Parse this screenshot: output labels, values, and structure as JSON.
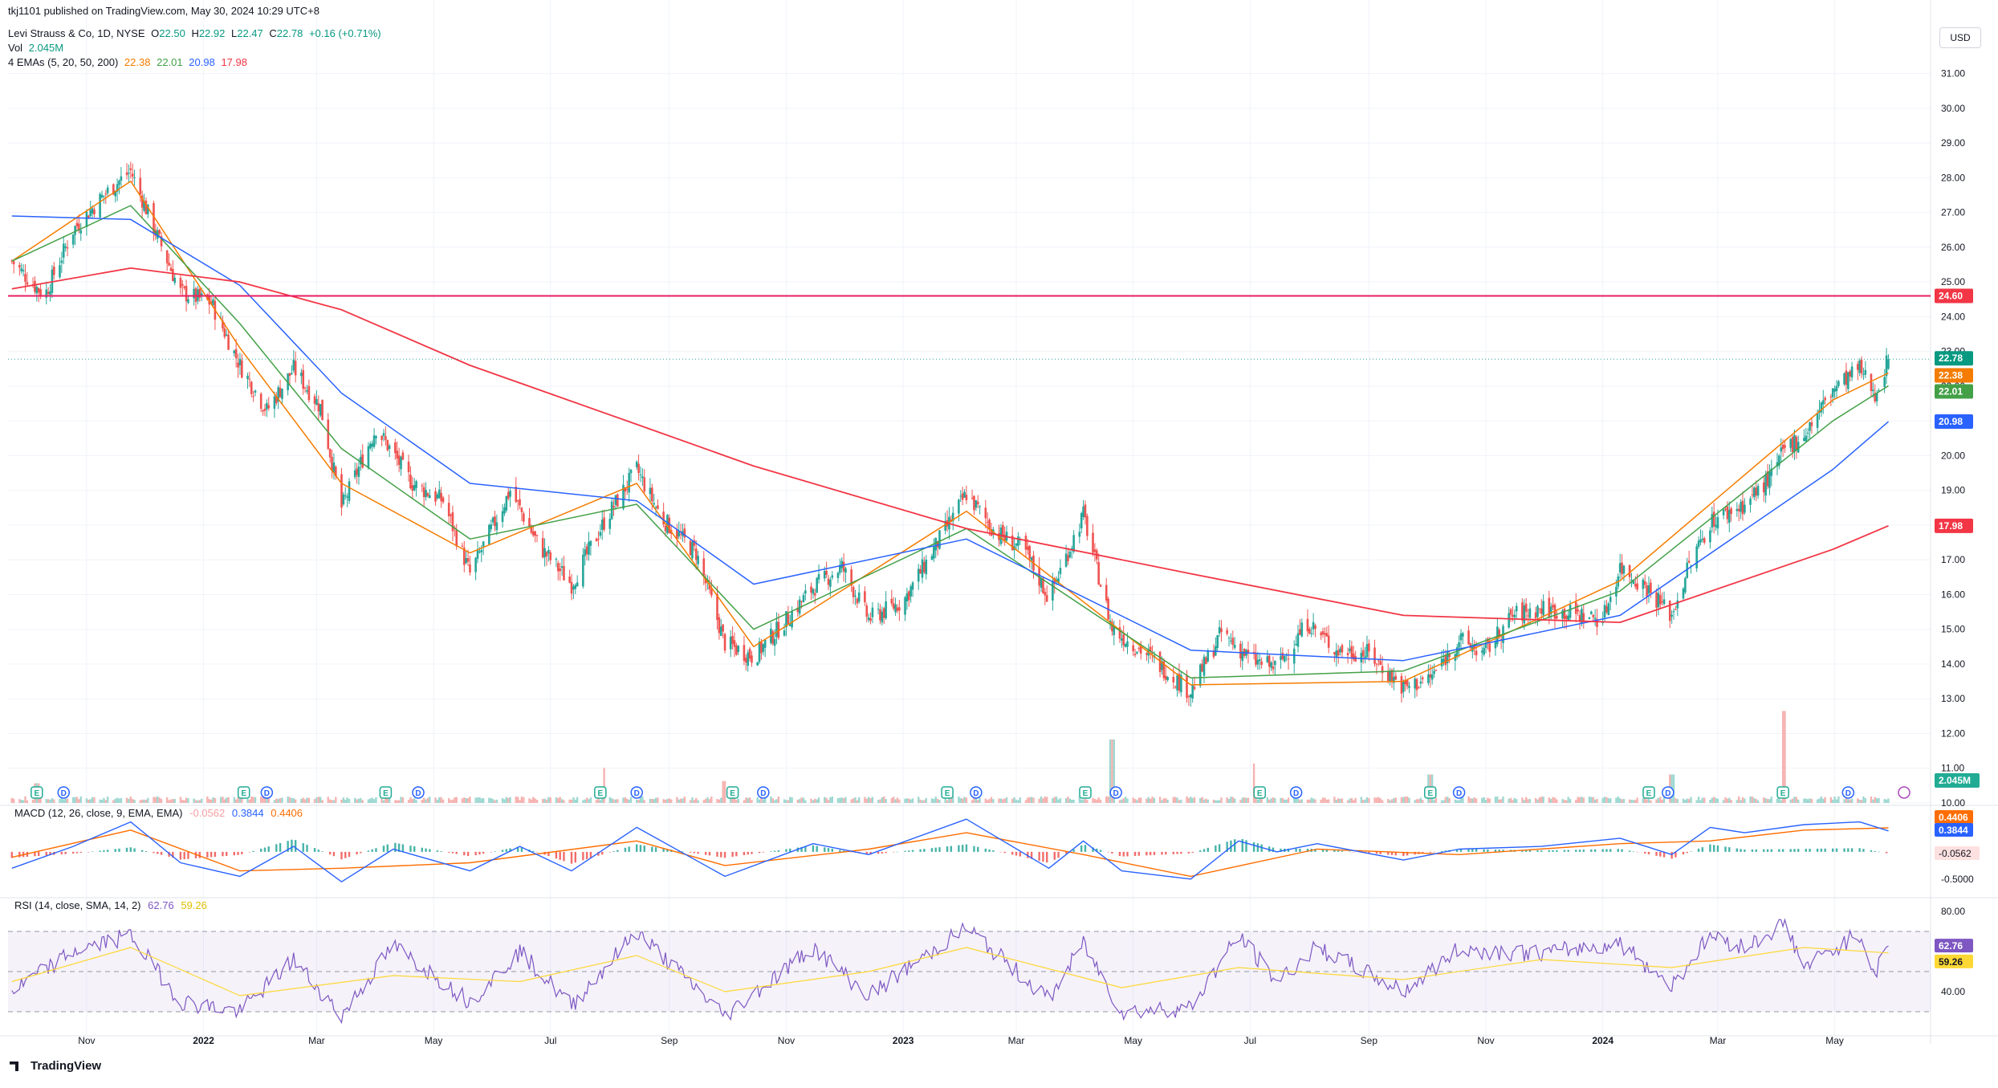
{
  "header": {
    "published": "tkj1101 published on TradingView.com, May 30, 2024 10:29 UTC+8",
    "symbol": "Levi Strauss & Co, 1D, NYSE",
    "ohlc": {
      "o_label": "O",
      "o": "22.50",
      "h_label": "H",
      "h": "22.92",
      "l_label": "L",
      "l": "22.47",
      "c_label": "C",
      "c": "22.78",
      "chg": "+0.16 (+0.71%)"
    },
    "vol_label": "Vol",
    "vol_value": "2.045M",
    "ema_label": "4 EMAs (5, 20, 50, 200)",
    "ema_values": [
      "22.38",
      "22.01",
      "20.98",
      "17.98"
    ]
  },
  "currency_button": "USD",
  "macd_label": "MACD (12, 26, close, 9, EMA, EMA)",
  "macd_values": [
    "-0.0562",
    "0.3844",
    "0.4406"
  ],
  "rsi_label": "RSI (14, close, SMA, 14, 2)",
  "rsi_values": [
    "62.76",
    "59.26"
  ],
  "footer": {
    "logo_text": "TradingView"
  },
  "colors": {
    "up": "#26a69a",
    "down": "#ef5350",
    "ema5": "#f57c00",
    "ema20": "#43a047",
    "ema50": "#2962ff",
    "ema200": "#f23645",
    "macd": "#2962ff",
    "signal": "#ff6d00",
    "rsi": "#7e57c2",
    "rsi_ma": "#fdd835",
    "hline": "#e91e63"
  },
  "chart_data": [
    {
      "type": "candlestick",
      "name": "price",
      "ylim": [
        10.0,
        31.5
      ],
      "y_ticks": [
        "31.00",
        "30.00",
        "29.00",
        "28.00",
        "27.00",
        "26.00",
        "25.00",
        "24.00",
        "23.00",
        "22.00",
        "21.00",
        "20.00",
        "19.00",
        "18.00",
        "17.00",
        "16.00",
        "15.00",
        "14.00",
        "13.00",
        "12.00",
        "11.00",
        "10.00"
      ],
      "x_ticks": [
        "Nov",
        "2022",
        "Mar",
        "May",
        "Jul",
        "Sep",
        "Nov",
        "2023",
        "Mar",
        "May",
        "Jul",
        "Sep",
        "Nov",
        "2024",
        "Mar",
        "May"
      ],
      "x_range": [
        "2021-09-21",
        "2024-06-20"
      ],
      "close_path": [
        [
          "2021-09-23",
          25.6
        ],
        [
          "2021-10-10",
          24.6
        ],
        [
          "2021-10-25",
          26.5
        ],
        [
          "2021-11-10",
          27.5
        ],
        [
          "2021-11-24",
          28.2
        ],
        [
          "2021-12-08",
          26.3
        ],
        [
          "2021-12-20",
          24.7
        ],
        [
          "2022-01-05",
          24.4
        ],
        [
          "2022-01-20",
          22.6
        ],
        [
          "2022-02-03",
          21.3
        ],
        [
          "2022-02-17",
          22.5
        ],
        [
          "2022-03-03",
          21.4
        ],
        [
          "2022-03-14",
          18.5
        ],
        [
          "2022-04-01",
          20.8
        ],
        [
          "2022-04-20",
          19.2
        ],
        [
          "2022-05-06",
          18.7
        ],
        [
          "2022-05-20",
          16.6
        ],
        [
          "2022-06-10",
          19.0
        ],
        [
          "2022-06-25",
          17.4
        ],
        [
          "2022-07-12",
          16.3
        ],
        [
          "2022-07-30",
          18.2
        ],
        [
          "2022-08-15",
          19.6
        ],
        [
          "2022-08-28",
          18.2
        ],
        [
          "2022-09-15",
          17.2
        ],
        [
          "2022-09-30",
          14.6
        ],
        [
          "2022-10-15",
          14.2
        ],
        [
          "2022-10-31",
          15.2
        ],
        [
          "2022-11-15",
          16.2
        ],
        [
          "2022-11-30",
          16.8
        ],
        [
          "2022-12-14",
          15.3
        ],
        [
          "2023-01-01",
          15.8
        ],
        [
          "2023-01-18",
          17.4
        ],
        [
          "2023-02-03",
          18.9
        ],
        [
          "2023-02-18",
          17.8
        ],
        [
          "2023-03-05",
          17.3
        ],
        [
          "2023-03-18",
          15.9
        ],
        [
          "2023-04-05",
          18.3
        ],
        [
          "2023-04-20",
          15.0
        ],
        [
          "2023-05-10",
          14.2
        ],
        [
          "2023-05-31",
          13.2
        ],
        [
          "2023-06-16",
          14.9
        ],
        [
          "2023-07-02",
          14.1
        ],
        [
          "2023-07-15",
          13.9
        ],
        [
          "2023-07-31",
          15.2
        ],
        [
          "2023-08-15",
          14.4
        ],
        [
          "2023-09-01",
          14.3
        ],
        [
          "2023-09-19",
          13.3
        ],
        [
          "2023-10-03",
          13.6
        ],
        [
          "2023-10-18",
          14.7
        ],
        [
          "2023-10-31",
          14.3
        ],
        [
          "2023-11-15",
          15.4
        ],
        [
          "2023-11-30",
          15.6
        ],
        [
          "2024-01-01",
          15.3
        ],
        [
          "2024-01-10",
          16.8
        ],
        [
          "2024-01-24",
          16.2
        ],
        [
          "2024-02-06",
          15.4
        ],
        [
          "2024-02-14",
          16.7
        ],
        [
          "2024-02-26",
          18.1
        ],
        [
          "2024-03-15",
          18.6
        ],
        [
          "2024-03-29",
          19.4
        ],
        [
          "2024-04-05",
          20.2
        ],
        [
          "2024-04-15",
          20.6
        ],
        [
          "2024-04-30",
          21.9
        ],
        [
          "2024-05-14",
          22.5
        ],
        [
          "2024-05-22",
          21.8
        ],
        [
          "2024-05-29",
          22.78
        ]
      ],
      "ema": [
        {
          "label": "EMA 5",
          "last": 22.38,
          "path": [
            [
              "2021-09-23",
              25.6
            ],
            [
              "2021-11-24",
              27.9
            ],
            [
              "2022-01-20",
              23.1
            ],
            [
              "2022-03-14",
              19.2
            ],
            [
              "2022-05-20",
              17.2
            ],
            [
              "2022-08-15",
              19.2
            ],
            [
              "2022-10-15",
              14.5
            ],
            [
              "2023-02-03",
              18.4
            ],
            [
              "2023-05-31",
              13.4
            ],
            [
              "2023-09-19",
              13.5
            ],
            [
              "2024-01-10",
              16.4
            ],
            [
              "2024-04-30",
              21.6
            ],
            [
              "2024-05-29",
              22.38
            ]
          ]
        },
        {
          "label": "EMA 20",
          "last": 22.01,
          "path": [
            [
              "2021-09-23",
              25.6
            ],
            [
              "2021-11-24",
              27.2
            ],
            [
              "2022-01-20",
              23.8
            ],
            [
              "2022-03-14",
              20.2
            ],
            [
              "2022-05-20",
              17.6
            ],
            [
              "2022-08-15",
              18.6
            ],
            [
              "2022-10-15",
              15.0
            ],
            [
              "2023-02-03",
              17.9
            ],
            [
              "2023-05-31",
              13.6
            ],
            [
              "2023-09-19",
              13.8
            ],
            [
              "2024-01-10",
              16.1
            ],
            [
              "2024-04-30",
              21.0
            ],
            [
              "2024-05-29",
              22.01
            ]
          ]
        },
        {
          "label": "EMA 50",
          "last": 20.98,
          "path": [
            [
              "2021-09-23",
              26.9
            ],
            [
              "2021-11-24",
              26.8
            ],
            [
              "2022-01-20",
              24.9
            ],
            [
              "2022-03-14",
              21.8
            ],
            [
              "2022-05-20",
              19.2
            ],
            [
              "2022-08-15",
              18.7
            ],
            [
              "2022-10-15",
              16.3
            ],
            [
              "2023-02-03",
              17.6
            ],
            [
              "2023-05-31",
              14.4
            ],
            [
              "2023-09-19",
              14.1
            ],
            [
              "2024-01-10",
              15.4
            ],
            [
              "2024-04-30",
              19.6
            ],
            [
              "2024-05-29",
              20.98
            ]
          ]
        },
        {
          "label": "EMA 200",
          "last": 17.98,
          "path": [
            [
              "2021-09-23",
              24.8
            ],
            [
              "2021-11-24",
              25.4
            ],
            [
              "2022-01-20",
              25.0
            ],
            [
              "2022-03-14",
              24.2
            ],
            [
              "2022-05-20",
              22.6
            ],
            [
              "2022-08-15",
              20.9
            ],
            [
              "2022-10-15",
              19.7
            ],
            [
              "2023-02-03",
              17.9
            ],
            [
              "2023-05-31",
              16.6
            ],
            [
              "2023-09-19",
              15.4
            ],
            [
              "2024-01-10",
              15.2
            ],
            [
              "2024-04-30",
              17.3
            ],
            [
              "2024-05-29",
              17.98
            ]
          ]
        }
      ],
      "horizontal_line": 24.6,
      "price_labels": [
        "24.60",
        "22.78",
        "22.38",
        "22.01",
        "20.98",
        "17.98"
      ]
    },
    {
      "type": "bar",
      "name": "volume",
      "last_label": "2.045M",
      "spikes": [
        [
          "2021-10-06",
          0.9
        ],
        [
          "2022-02-03",
          0.55
        ],
        [
          "2022-07-30",
          1.6
        ],
        [
          "2022-09-30",
          1.0
        ],
        [
          "2023-04-20",
          2.9
        ],
        [
          "2023-07-02",
          1.8
        ],
        [
          "2023-10-03",
          1.3
        ],
        [
          "2024-02-06",
          1.3
        ],
        [
          "2024-04-05",
          4.2
        ]
      ],
      "event_markers": [
        [
          "2021-10-06",
          "E"
        ],
        [
          "2021-10-20",
          "D"
        ],
        [
          "2022-01-22",
          "E"
        ],
        [
          "2022-02-03",
          "D"
        ],
        [
          "2022-04-06",
          "E"
        ],
        [
          "2022-04-23",
          "D"
        ],
        [
          "2022-07-27",
          "E"
        ],
        [
          "2022-08-15",
          "D"
        ],
        [
          "2022-10-04",
          "E"
        ],
        [
          "2022-10-20",
          "D"
        ],
        [
          "2023-01-24",
          "E"
        ],
        [
          "2023-02-08",
          "D"
        ],
        [
          "2023-04-06",
          "E"
        ],
        [
          "2023-04-22",
          "D"
        ],
        [
          "2023-07-06",
          "E"
        ],
        [
          "2023-07-25",
          "D"
        ],
        [
          "2023-10-03",
          "E"
        ],
        [
          "2023-10-18",
          "D"
        ],
        [
          "2024-01-25",
          "E"
        ],
        [
          "2024-02-04",
          "D"
        ],
        [
          "2024-04-04",
          "E"
        ],
        [
          "2024-05-08",
          "D"
        ]
      ]
    },
    {
      "type": "line",
      "name": "macd",
      "y_ticks": [
        "-0.5000"
      ],
      "ylim": [
        -0.65,
        0.75
      ],
      "macd_path": [
        [
          "2021-09-23",
          -0.3
        ],
        [
          "2021-10-25",
          0.1
        ],
        [
          "2021-11-24",
          0.55
        ],
        [
          "2021-12-20",
          -0.2
        ],
        [
          "2022-01-20",
          -0.45
        ],
        [
          "2022-02-17",
          0.1
        ],
        [
          "2022-03-14",
          -0.55
        ],
        [
          "2022-04-10",
          0.05
        ],
        [
          "2022-05-20",
          -0.35
        ],
        [
          "2022-06-15",
          0.1
        ],
        [
          "2022-07-12",
          -0.35
        ],
        [
          "2022-08-15",
          0.45
        ],
        [
          "2022-09-30",
          -0.45
        ],
        [
          "2022-11-15",
          0.15
        ],
        [
          "2022-12-14",
          -0.05
        ],
        [
          "2023-02-03",
          0.6
        ],
        [
          "2023-03-18",
          -0.3
        ],
        [
          "2023-04-05",
          0.2
        ],
        [
          "2023-04-25",
          -0.35
        ],
        [
          "2023-05-31",
          -0.5
        ],
        [
          "2023-06-25",
          0.2
        ],
        [
          "2023-07-15",
          0.0
        ],
        [
          "2023-08-05",
          0.15
        ],
        [
          "2023-09-19",
          -0.15
        ],
        [
          "2023-10-18",
          0.05
        ],
        [
          "2023-11-30",
          0.1
        ],
        [
          "2024-01-10",
          0.25
        ],
        [
          "2024-02-06",
          -0.05
        ],
        [
          "2024-02-26",
          0.45
        ],
        [
          "2024-03-15",
          0.35
        ],
        [
          "2024-04-15",
          0.5
        ],
        [
          "2024-05-14",
          0.55
        ],
        [
          "2024-05-29",
          0.3844
        ]
      ],
      "signal_path": [
        [
          "2021-09-23",
          -0.1
        ],
        [
          "2021-11-24",
          0.4
        ],
        [
          "2022-01-20",
          -0.35
        ],
        [
          "2022-03-14",
          -0.3
        ],
        [
          "2022-05-20",
          -0.2
        ],
        [
          "2022-08-15",
          0.2
        ],
        [
          "2022-09-30",
          -0.25
        ],
        [
          "2022-12-14",
          0.05
        ],
        [
          "2023-02-03",
          0.35
        ],
        [
          "2023-04-05",
          -0.05
        ],
        [
          "2023-05-31",
          -0.45
        ],
        [
          "2023-08-05",
          0.05
        ],
        [
          "2023-10-18",
          -0.05
        ],
        [
          "2024-01-10",
          0.15
        ],
        [
          "2024-02-26",
          0.2
        ],
        [
          "2024-04-15",
          0.4
        ],
        [
          "2024-05-29",
          0.4406
        ]
      ],
      "hist_last": -0.0562
    },
    {
      "type": "line",
      "name": "rsi",
      "y_ticks": [
        "80.00",
        "40.00"
      ],
      "ylim": [
        22,
        84
      ],
      "bands": [
        30,
        50,
        70
      ],
      "rsi_path": [
        [
          "2021-09-23",
          40
        ],
        [
          "2021-10-25",
          60
        ],
        [
          "2021-11-24",
          68
        ],
        [
          "2021-12-20",
          35
        ],
        [
          "2022-01-20",
          30
        ],
        [
          "2022-02-17",
          56
        ],
        [
          "2022-03-14",
          28
        ],
        [
          "2022-04-10",
          63
        ],
        [
          "2022-05-20",
          35
        ],
        [
          "2022-06-15",
          60
        ],
        [
          "2022-07-12",
          33
        ],
        [
          "2022-08-15",
          70
        ],
        [
          "2022-09-30",
          28
        ],
        [
          "2022-11-15",
          62
        ],
        [
          "2022-12-14",
          38
        ],
        [
          "2023-02-03",
          72
        ],
        [
          "2023-03-18",
          36
        ],
        [
          "2023-04-05",
          64
        ],
        [
          "2023-04-25",
          30
        ],
        [
          "2023-05-31",
          32
        ],
        [
          "2023-06-25",
          68
        ],
        [
          "2023-07-15",
          45
        ],
        [
          "2023-08-05",
          62
        ],
        [
          "2023-09-19",
          40
        ],
        [
          "2023-10-18",
          61
        ],
        [
          "2023-11-30",
          59
        ],
        [
          "2024-01-10",
          64
        ],
        [
          "2024-02-06",
          43
        ],
        [
          "2024-02-26",
          68
        ],
        [
          "2024-03-15",
          62
        ],
        [
          "2024-04-05",
          74
        ],
        [
          "2024-04-15",
          52
        ],
        [
          "2024-05-14",
          69
        ],
        [
          "2024-05-22",
          49
        ],
        [
          "2024-05-29",
          62.76
        ]
      ],
      "rsi_ma_path": [
        [
          "2021-09-23",
          45
        ],
        [
          "2021-11-24",
          62
        ],
        [
          "2022-01-20",
          38
        ],
        [
          "2022-04-10",
          48
        ],
        [
          "2022-06-15",
          45
        ],
        [
          "2022-08-15",
          58
        ],
        [
          "2022-09-30",
          40
        ],
        [
          "2022-12-14",
          50
        ],
        [
          "2023-02-03",
          62
        ],
        [
          "2023-04-25",
          42
        ],
        [
          "2023-06-25",
          52
        ],
        [
          "2023-09-19",
          46
        ],
        [
          "2023-11-30",
          56
        ],
        [
          "2024-02-06",
          52
        ],
        [
          "2024-04-15",
          62
        ],
        [
          "2024-05-29",
          59.26
        ]
      ]
    }
  ]
}
